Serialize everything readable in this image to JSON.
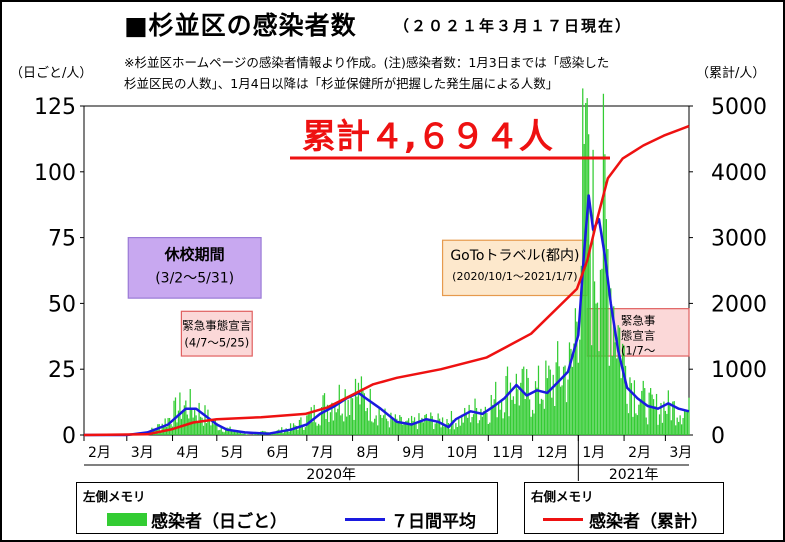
{
  "header": {
    "title": "■杉並区の感染者数",
    "date": "（２０２１年３月１７日現在）",
    "note_line1": "※杉並区ホームページの感染者情報より作成。(注)感染者数：1月3日までは「感染した",
    "note_line2": "杉並区民の人数」、1月4日以降は「杉並保健所が把握した発生届による人数」"
  },
  "axes": {
    "left_unit": "（日ごと/人）",
    "right_unit": "（累計/人）"
  },
  "annotations": {
    "cumulative_total": "累計４,６９４人",
    "school_closure_title": "休校期間",
    "school_closure_dates": "(3/2～5/31)",
    "emergency1_line1": "緊急事態宣言",
    "emergency1_line2": "(4/7～5/25)",
    "goto_title": "GoToトラベル(都内)",
    "goto_dates": "(2020/10/1～2021/1/7)",
    "emergency2_line1": "緊急事",
    "emergency2_line2": "態宣言",
    "emergency2_line3": "(1/7～"
  },
  "legend": {
    "left_header": "左側メモリ",
    "right_header": "右側メモリ",
    "daily_label": "感染者（日ごと）",
    "avg_label": "７日間平均",
    "cumulative_label": "感染者（累計）"
  },
  "colors": {
    "daily_bar": "#33cc33",
    "avg_line": "#1a1adf",
    "cumulative_line": "#ee1111",
    "school_box": "#c8a8f0",
    "emergency_box": "#fbd8d8",
    "goto_box": "#fde8cc"
  },
  "chart_data": {
    "type": "bar",
    "x_start": "2020-02-01",
    "x_end": "2021-03-17",
    "month_ticks": [
      "2月",
      "3月",
      "4月",
      "5月",
      "6月",
      "7月",
      "8月",
      "9月",
      "10月",
      "11月",
      "12月",
      "1月",
      "2月",
      "3月"
    ],
    "year_labels": [
      "2020年",
      "2021年"
    ],
    "ylim_left": [
      0,
      125
    ],
    "yticks_left": [
      0,
      25,
      50,
      75,
      100,
      125
    ],
    "ylim_right": [
      0,
      5000
    ],
    "yticks_right": [
      0,
      1000,
      2000,
      3000,
      4000,
      5000
    ],
    "series": [
      {
        "name": "感染者（日ごと）",
        "axis": "left",
        "kind": "bar",
        "weekly_anchors": [
          [
            "2020-02-01",
            0
          ],
          [
            "2020-02-15",
            0
          ],
          [
            "2020-03-01",
            0
          ],
          [
            "2020-03-08",
            0
          ],
          [
            "2020-03-15",
            1
          ],
          [
            "2020-03-22",
            3
          ],
          [
            "2020-03-29",
            6
          ],
          [
            "2020-04-05",
            10
          ],
          [
            "2020-04-12",
            11
          ],
          [
            "2020-04-19",
            9
          ],
          [
            "2020-04-26",
            6
          ],
          [
            "2020-05-03",
            3
          ],
          [
            "2020-05-10",
            2
          ],
          [
            "2020-05-17",
            1
          ],
          [
            "2020-05-24",
            0
          ],
          [
            "2020-06-01",
            1
          ],
          [
            "2020-06-08",
            1
          ],
          [
            "2020-06-15",
            2
          ],
          [
            "2020-06-22",
            3
          ],
          [
            "2020-06-29",
            5
          ],
          [
            "2020-07-06",
            8
          ],
          [
            "2020-07-13",
            11
          ],
          [
            "2020-07-20",
            13
          ],
          [
            "2020-07-27",
            15
          ],
          [
            "2020-08-03",
            16
          ],
          [
            "2020-08-10",
            13
          ],
          [
            "2020-08-17",
            10
          ],
          [
            "2020-08-24",
            6
          ],
          [
            "2020-08-31",
            5
          ],
          [
            "2020-09-07",
            4
          ],
          [
            "2020-09-14",
            5
          ],
          [
            "2020-09-21",
            6
          ],
          [
            "2020-09-28",
            5
          ],
          [
            "2020-10-05",
            6
          ],
          [
            "2020-10-12",
            5
          ],
          [
            "2020-10-19",
            8
          ],
          [
            "2020-10-26",
            10
          ],
          [
            "2020-11-02",
            11
          ],
          [
            "2020-11-09",
            15
          ],
          [
            "2020-11-16",
            19
          ],
          [
            "2020-11-23",
            17
          ],
          [
            "2020-11-30",
            15
          ],
          [
            "2020-12-07",
            17
          ],
          [
            "2020-12-14",
            20
          ],
          [
            "2020-12-21",
            24
          ],
          [
            "2020-12-28",
            25
          ],
          [
            "2021-01-04",
            85
          ],
          [
            "2021-01-11",
            72
          ],
          [
            "2021-01-18",
            80
          ],
          [
            "2021-01-25",
            50
          ],
          [
            "2021-02-01",
            28
          ],
          [
            "2021-02-08",
            18
          ],
          [
            "2021-02-15",
            12
          ],
          [
            "2021-02-22",
            10
          ],
          [
            "2021-03-01",
            11
          ],
          [
            "2021-03-08",
            10
          ],
          [
            "2021-03-17",
            9
          ]
        ],
        "peak": [
          "2021-01-07",
          128
        ]
      },
      {
        "name": "７日間平均",
        "axis": "left",
        "kind": "line",
        "points": [
          [
            "2020-02-01",
            0
          ],
          [
            "2020-03-01",
            0
          ],
          [
            "2020-03-15",
            1
          ],
          [
            "2020-03-29",
            4
          ],
          [
            "2020-04-06",
            8
          ],
          [
            "2020-04-10",
            10
          ],
          [
            "2020-04-17",
            10
          ],
          [
            "2020-04-24",
            7
          ],
          [
            "2020-05-01",
            4
          ],
          [
            "2020-05-08",
            2
          ],
          [
            "2020-05-20",
            1
          ],
          [
            "2020-06-05",
            0.5
          ],
          [
            "2020-06-20",
            2
          ],
          [
            "2020-07-01",
            4
          ],
          [
            "2020-07-10",
            8
          ],
          [
            "2020-07-20",
            11
          ],
          [
            "2020-07-28",
            14
          ],
          [
            "2020-08-05",
            16
          ],
          [
            "2020-08-10",
            14
          ],
          [
            "2020-08-20",
            10
          ],
          [
            "2020-08-31",
            5
          ],
          [
            "2020-09-10",
            4
          ],
          [
            "2020-09-20",
            6
          ],
          [
            "2020-09-28",
            5
          ],
          [
            "2020-10-05",
            3
          ],
          [
            "2020-10-10",
            6
          ],
          [
            "2020-10-20",
            9
          ],
          [
            "2020-10-28",
            8
          ],
          [
            "2020-11-05",
            11
          ],
          [
            "2020-11-12",
            14
          ],
          [
            "2020-11-20",
            19
          ],
          [
            "2020-11-27",
            15
          ],
          [
            "2020-12-04",
            17
          ],
          [
            "2020-12-11",
            16
          ],
          [
            "2020-12-18",
            20
          ],
          [
            "2020-12-25",
            24
          ],
          [
            "2021-01-01",
            38
          ],
          [
            "2021-01-05",
            70
          ],
          [
            "2021-01-08",
            91
          ],
          [
            "2021-01-11",
            78
          ],
          [
            "2021-01-15",
            82
          ],
          [
            "2021-01-19",
            68
          ],
          [
            "2021-01-23",
            50
          ],
          [
            "2021-01-28",
            32
          ],
          [
            "2021-02-03",
            18
          ],
          [
            "2021-02-10",
            14
          ],
          [
            "2021-02-17",
            11
          ],
          [
            "2021-02-24",
            10
          ],
          [
            "2021-03-03",
            12
          ],
          [
            "2021-03-10",
            10
          ],
          [
            "2021-03-17",
            9
          ]
        ]
      },
      {
        "name": "感染者（累計）",
        "axis": "right",
        "kind": "line",
        "points": [
          [
            "2020-02-01",
            0
          ],
          [
            "2020-03-15",
            10
          ],
          [
            "2020-04-01",
            90
          ],
          [
            "2020-04-15",
            190
          ],
          [
            "2020-05-01",
            240
          ],
          [
            "2020-05-31",
            270
          ],
          [
            "2020-06-30",
            320
          ],
          [
            "2020-07-15",
            420
          ],
          [
            "2020-07-31",
            600
          ],
          [
            "2020-08-15",
            770
          ],
          [
            "2020-08-31",
            870
          ],
          [
            "2020-09-30",
            1000
          ],
          [
            "2020-10-31",
            1180
          ],
          [
            "2020-11-30",
            1540
          ],
          [
            "2020-12-31",
            2220
          ],
          [
            "2021-01-07",
            2650
          ],
          [
            "2021-01-14",
            3300
          ],
          [
            "2021-01-21",
            3900
          ],
          [
            "2021-01-31",
            4200
          ],
          [
            "2021-02-14",
            4400
          ],
          [
            "2021-02-28",
            4550
          ],
          [
            "2021-03-17",
            4694
          ]
        ]
      }
    ]
  }
}
